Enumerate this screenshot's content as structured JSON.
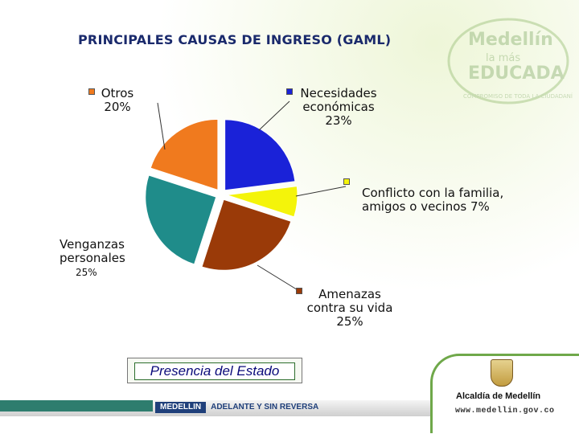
{
  "title": "PRINCIPALES CAUSAS DE INGRESO (GAML)",
  "watermark": {
    "line1": "Medellín",
    "line2": "la más",
    "line3": "EDUCADA",
    "arc": "COMPROMISO DE TODA LA CIUDADANÍA"
  },
  "chart_data": {
    "type": "pie",
    "title": "PRINCIPALES CAUSAS DE INGRESO (GAML)",
    "exploded": true,
    "slices": [
      {
        "label": "Necesidades\neconómicas",
        "pct_text": "23%",
        "value": 23,
        "color": "#1a22d8"
      },
      {
        "label": "Conflicto con la familia,\namigos o vecinos",
        "pct_text": "7%",
        "value": 7,
        "color": "#f4f40a"
      },
      {
        "label": "Amenazas\ncontra su vida",
        "pct_text": "25%",
        "value": 25,
        "color": "#9a3a08"
      },
      {
        "label": "Venganzas\npersonales",
        "pct_text": "25%",
        "value": 25,
        "color": "#1f8c8a"
      },
      {
        "label": "Otros",
        "pct_text": "20%",
        "value": 20,
        "color": "#f07a1e"
      }
    ]
  },
  "labels": {
    "necesidades": "Necesidades\neconómicas\n23%",
    "conflicto": "Conflicto con la familia,\namigos o vecinos 7%",
    "amenazas": "Amenazas\ncontra su vida\n25%",
    "venganzas": "Venganzas\npersonales",
    "venganzas_pct": "25%",
    "otros": "Otros\n20%"
  },
  "presencia": "Presencia del Estado",
  "footer": {
    "medellin": "MEDELLIN",
    "slogan": "ADELANTE Y SIN REVERSA",
    "alcaldia": "Alcaldía de Medellín",
    "web": "www.medellin.gov.co"
  }
}
